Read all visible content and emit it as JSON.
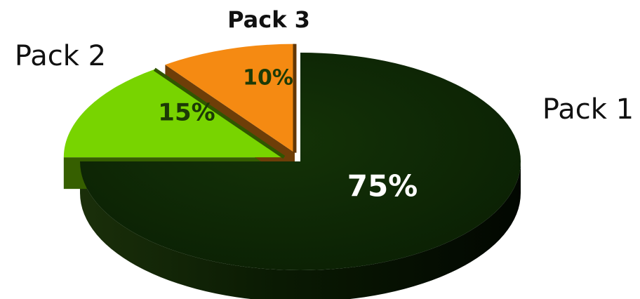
{
  "chart_data": {
    "type": "pie",
    "title": "",
    "categories": [
      "Pack 1",
      "Pack 2",
      "Pack 3"
    ],
    "values": [
      75,
      15,
      10
    ],
    "data_labels": [
      "75%",
      "15%",
      "10%"
    ],
    "colors": [
      "#0f2a06",
      "#78d400",
      "#f58a12"
    ],
    "label_colors": [
      "#ffffff",
      "#1c3a06",
      "#1c3a06"
    ],
    "three_d": true,
    "exploded": [
      "Pack 2",
      "Pack 3"
    ],
    "legend": "none"
  }
}
